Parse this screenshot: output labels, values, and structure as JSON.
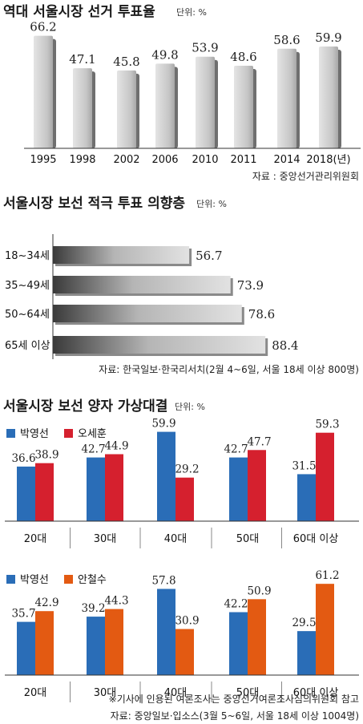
{
  "chart_data": [
    {
      "type": "bar",
      "title": "역대 서울시장 선거 투표율",
      "unit": "단위: %",
      "categories": [
        "1995",
        "1998",
        "2002",
        "2006",
        "2010",
        "2011",
        "2014",
        "2018(년)"
      ],
      "values": [
        66.2,
        47.1,
        45.8,
        49.8,
        53.9,
        48.6,
        58.6,
        59.9
      ],
      "ylim": [
        0,
        70
      ],
      "source": "자료 : 중앙선거관리위원회",
      "colors": {
        "bar": "#c4c4c4",
        "shadow": "#6f6f6f"
      }
    },
    {
      "type": "bar",
      "orientation": "horizontal",
      "title": "서울시장 보선 적극 투표 의향층",
      "unit": "단위: %",
      "categories": [
        "18~34세",
        "35~49세",
        "50~64세",
        "65세 이상"
      ],
      "values": [
        56.7,
        73.9,
        78.6,
        88.4
      ],
      "xlim": [
        0,
        100
      ],
      "source": "자료:  한국일보·한국리서치(2월 4~6일, 서울 18세 이상 800명)",
      "colors": {
        "bar_start": "#3a3a3a",
        "bar_end": "#dedede"
      }
    },
    {
      "type": "bar",
      "title": "서울시장 보선 양자 가상대결",
      "unit": "단위: %",
      "categories": [
        "20대",
        "30대",
        "40대",
        "50대",
        "60대 이상"
      ],
      "series": [
        {
          "name": "박영선",
          "values": [
            36.6,
            42.7,
            59.9,
            42.7,
            31.5
          ],
          "color": "#2a6db7"
        },
        {
          "name": "오세훈",
          "values": [
            38.9,
            44.9,
            29.2,
            47.7,
            59.3
          ],
          "color": "#d5202e"
        }
      ],
      "ylim": [
        0,
        70
      ],
      "legend": "top-left"
    },
    {
      "type": "bar",
      "categories": [
        "20대",
        "30대",
        "40대",
        "50대",
        "60대 이상"
      ],
      "series": [
        {
          "name": "박영선",
          "values": [
            35.7,
            39.2,
            57.8,
            42.2,
            29.5
          ],
          "color": "#2a6db7"
        },
        {
          "name": "안철수",
          "values": [
            42.9,
            44.3,
            30.9,
            50.9,
            61.2
          ],
          "color": "#e35a12"
        }
      ],
      "ylim": [
        0,
        70
      ],
      "legend": "top-left",
      "note": "※기사에 인용된 여론조사는 중앙선거여론조사심의위원회 참고",
      "source": "자료: 중앙일보·입소스(3월 5~6일, 서울 18세 이상 1004명)"
    }
  ]
}
